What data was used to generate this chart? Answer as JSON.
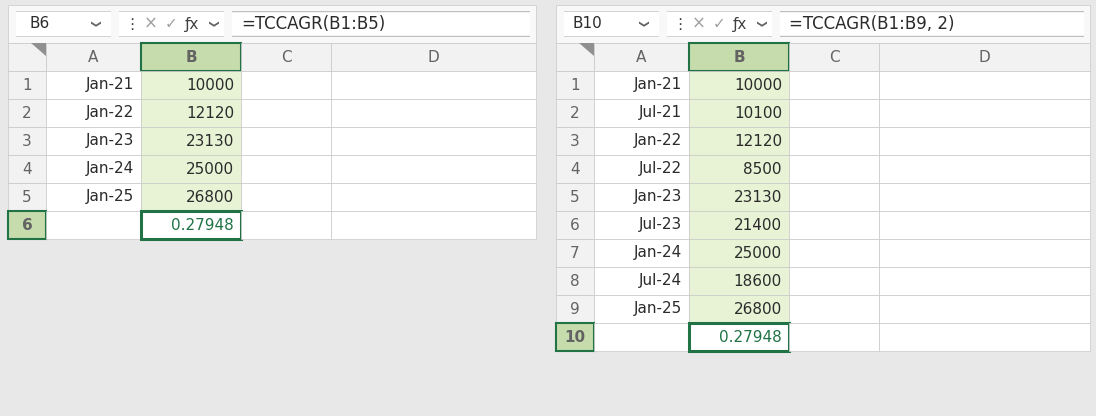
{
  "left_panel": {
    "formula_cell": "B6",
    "formula": "=TCCAGR(B1:B5)",
    "rows": [
      {
        "row": "1",
        "A": "Jan-21",
        "B": "10000"
      },
      {
        "row": "2",
        "A": "Jan-22",
        "B": "12120"
      },
      {
        "row": "3",
        "A": "Jan-23",
        "B": "23130"
      },
      {
        "row": "4",
        "A": "Jan-24",
        "B": "25000"
      },
      {
        "row": "5",
        "A": "Jan-25",
        "B": "26800"
      },
      {
        "row": "6",
        "A": "",
        "B": "0.27948"
      }
    ],
    "active_col": "B",
    "active_row_result": "6"
  },
  "right_panel": {
    "formula_cell": "B10",
    "formula": "=TCCAGR(B1:B9, 2)",
    "rows": [
      {
        "row": "1",
        "A": "Jan-21",
        "B": "10000"
      },
      {
        "row": "2",
        "A": "Jul-21",
        "B": "10100"
      },
      {
        "row": "3",
        "A": "Jan-22",
        "B": "12120"
      },
      {
        "row": "4",
        "A": "Jul-22",
        "B": "8500"
      },
      {
        "row": "5",
        "A": "Jan-23",
        "B": "23130"
      },
      {
        "row": "6",
        "A": "Jul-23",
        "B": "21400"
      },
      {
        "row": "7",
        "A": "Jan-24",
        "B": "25000"
      },
      {
        "row": "8",
        "A": "Jul-24",
        "B": "18600"
      },
      {
        "row": "9",
        "A": "Jan-25",
        "B": "26800"
      },
      {
        "row": "10",
        "A": "",
        "B": "0.27948"
      }
    ],
    "active_col": "B",
    "active_row_result": "10"
  },
  "bg_color": "#FFFFFF",
  "outer_bg": "#E8E8E8",
  "header_bg": "#F2F2F2",
  "active_col_header_bg": "#C6DCAD",
  "active_col_bg": "#E8F3D6",
  "result_cell_border_color": "#217346",
  "grid_color": "#C8C8C8",
  "text_color": "#2B2B2B",
  "header_text_color": "#636363",
  "cell_font_size": 11,
  "header_font_size": 11,
  "formula_font_size": 12,
  "toolbar_font_size": 11
}
